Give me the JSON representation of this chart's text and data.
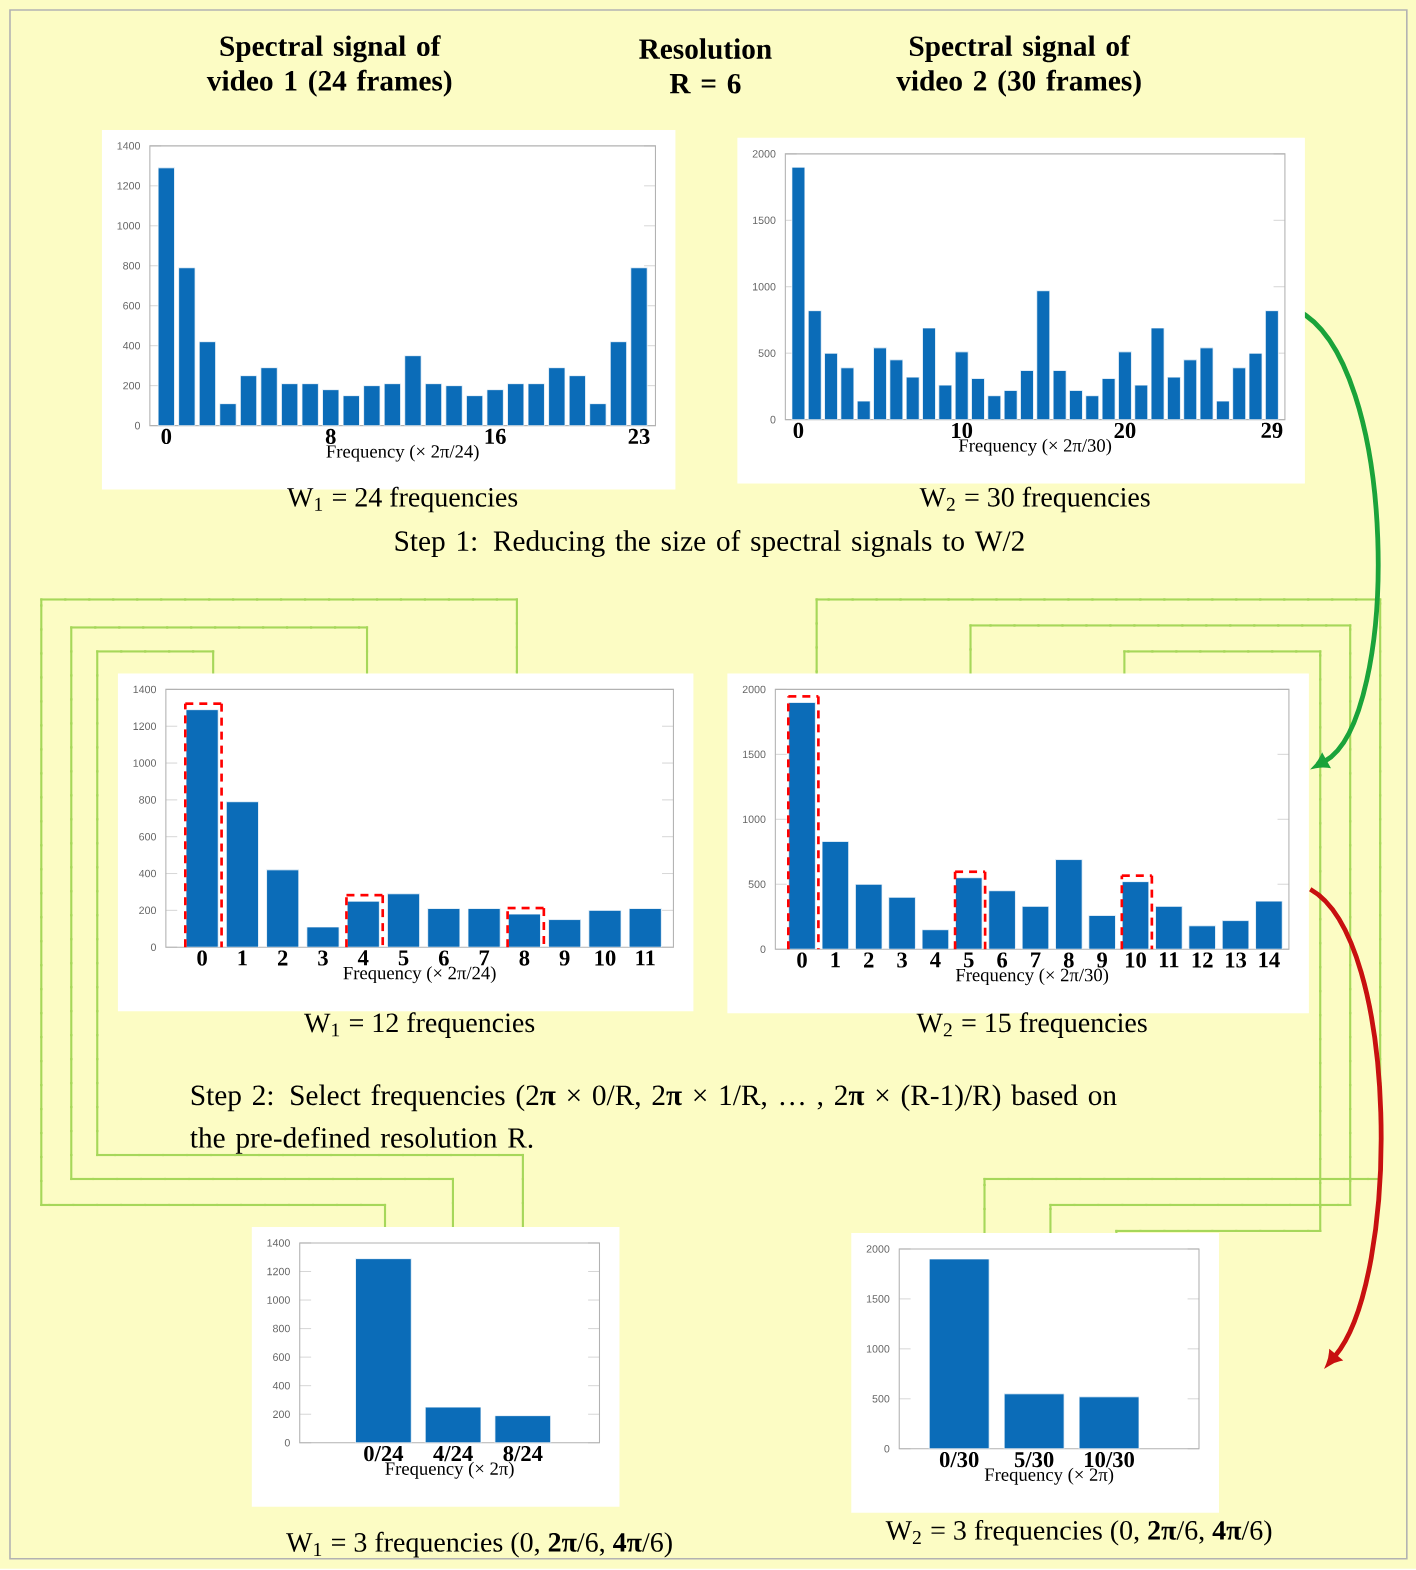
{
  "chart_data": [
    {
      "type": "bar",
      "title": "Spectral signal of video 1 (24 frames)",
      "xlabel": "Frequency (× 2π/24)",
      "categories": [
        "0",
        null,
        null,
        null,
        null,
        null,
        null,
        null,
        "8",
        null,
        null,
        null,
        null,
        null,
        null,
        null,
        "16",
        null,
        null,
        null,
        null,
        null,
        null,
        "23"
      ],
      "values": [
        1290,
        790,
        420,
        110,
        250,
        290,
        210,
        210,
        180,
        150,
        200,
        210,
        350,
        210,
        200,
        150,
        180,
        210,
        210,
        290,
        250,
        110,
        420,
        790
      ],
      "color": "#0b6cb8",
      "ylim": [
        0,
        1400
      ],
      "yticks": [
        0,
        200,
        400,
        600,
        800,
        1000,
        1200,
        1400
      ],
      "annotations": [
        "W$_{1}$ = 24 frequencies"
      ]
    },
    {
      "type": "bar",
      "title": "Spectral signal of video 2 (30 frames)",
      "xlabel": "Frequency (× 2π/30)",
      "categories": [
        "0",
        null,
        null,
        null,
        null,
        null,
        null,
        null,
        null,
        null,
        "10",
        null,
        null,
        null,
        null,
        null,
        null,
        null,
        null,
        null,
        "20",
        null,
        null,
        null,
        null,
        null,
        null,
        null,
        null,
        "29"
      ],
      "values": [
        1900,
        820,
        500,
        390,
        140,
        540,
        450,
        320,
        690,
        260,
        510,
        310,
        180,
        220,
        370,
        970,
        370,
        220,
        180,
        310,
        510,
        260,
        690,
        320,
        450,
        540,
        140,
        390,
        500,
        820
      ],
      "color": "#0b6cb8",
      "ylim": [
        0,
        2000
      ],
      "yticks": [
        0,
        500,
        1000,
        1500,
        2000
      ],
      "annotations": [
        "W$_{2}$ = 30 frequencies"
      ]
    },
    {
      "type": "bar",
      "xlabel": "Frequency (× 2π/24)",
      "categories": [
        "0",
        "1",
        "2",
        "3",
        "4",
        "5",
        "6",
        "7",
        "8",
        "9",
        "10",
        "11"
      ],
      "values": [
        1290,
        790,
        420,
        110,
        250,
        290,
        210,
        210,
        180,
        150,
        200,
        210
      ],
      "color": "#0b6cb8",
      "ylim": [
        0,
        1400
      ],
      "yticks": [
        0,
        200,
        400,
        600,
        800,
        1000,
        1200,
        1400
      ],
      "annotations": [
        "W$_{1}$ = 12 frequencies"
      ]
    },
    {
      "type": "bar",
      "xlabel": "Frequency (× 2π/30)",
      "categories": [
        "0",
        "1",
        "2",
        "3",
        "4",
        "5",
        "6",
        "7",
        "8",
        "9",
        "10",
        "11",
        "12",
        "13",
        "14"
      ],
      "values": [
        1900,
        830,
        500,
        400,
        150,
        550,
        450,
        330,
        690,
        260,
        520,
        330,
        180,
        220,
        370
      ],
      "color": "#0b6cb8",
      "ylim": [
        0,
        2000
      ],
      "yticks": [
        0,
        500,
        1000,
        1500,
        2000
      ],
      "annotations": [
        "W$_{2}$ = 15 frequencies"
      ]
    },
    {
      "type": "bar",
      "xlabel": "Frequency (× 2π)",
      "categories": [
        "0/24",
        "4/24",
        "8/24"
      ],
      "values": [
        1290,
        250,
        190
      ],
      "color": "#0b6cb8",
      "ylim": [
        0,
        1400
      ],
      "yticks": [
        0,
        200,
        400,
        600,
        800,
        1000,
        1200,
        1400
      ],
      "annotations": [
        "W$_{1}$ = 3 frequencies (0, **2π**/6, **4π**/6)"
      ]
    },
    {
      "type": "bar",
      "xlabel": "Frequency (× 2π)",
      "categories": [
        "0/30",
        "5/30",
        "10/30"
      ],
      "values": [
        1900,
        550,
        520
      ],
      "color": "#0b6cb8",
      "ylim": [
        0,
        2000
      ],
      "yticks": [
        0,
        500,
        1000,
        1500,
        2000
      ],
      "annotations": [
        "W$_{2}$ = 3 frequencies (0, **2π**/6, **4π**/6)"
      ]
    },
    {
      "type": "other",
      "annotations": [
        "Resolution R = 6",
        "Step 1: Reducing the size of spectral signals to W/2",
        "Step 2: Select frequencies (2**π** × 0/R, 2**π** × 1/R, … , 2**π** × (R-1)/R) based on the pre-defined resolution R."
      ]
    }
  ]
}
